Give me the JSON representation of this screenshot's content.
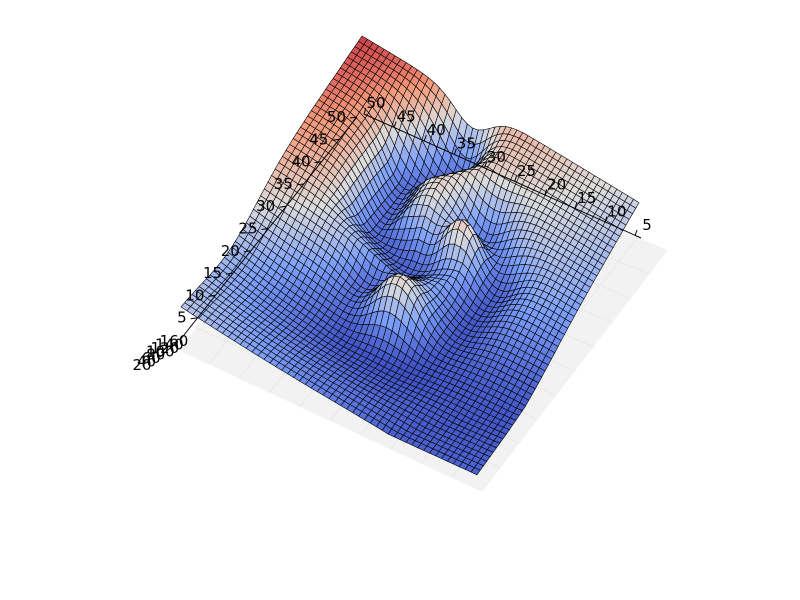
{
  "chart_data": {
    "type": "surface3d",
    "colormap": "coolwarm",
    "colors": {
      "low": "#3b4cc0",
      "mid": "#dddddd",
      "high": "#b40426",
      "edge": "#000000"
    },
    "x_ticks": [
      "50",
      "45",
      "40",
      "35",
      "30",
      "25",
      "20",
      "15",
      "10",
      "5"
    ],
    "y_ticks": [
      "50",
      "45",
      "40",
      "35",
      "30",
      "25",
      "20",
      "15",
      "10",
      "5"
    ],
    "z_ticks": [
      "20",
      "40",
      "60",
      "80",
      "100",
      "120",
      "140",
      "160"
    ],
    "xlim": [
      0,
      50
    ],
    "ylim": [
      0,
      50
    ],
    "zlim": [
      0,
      200
    ],
    "grid_resolution": 50,
    "surface_pattern": "letter shape with raised rim (values increase toward the 50/50 corner)"
  }
}
